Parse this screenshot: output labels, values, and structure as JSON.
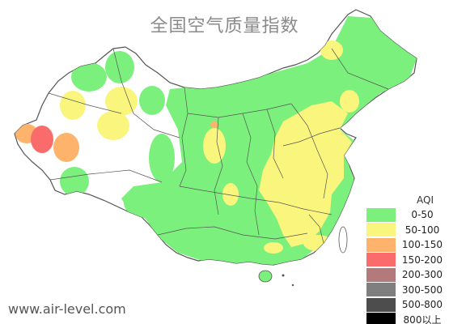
{
  "title": "全国空气质量指数",
  "website": "www.air-level.com",
  "legend": {
    "title": "AQI",
    "items": [
      {
        "label": "0-50",
        "color": "#7CF07C"
      },
      {
        "label": "50-100",
        "color": "#FAF57C"
      },
      {
        "label": "100-150",
        "color": "#FDB36B"
      },
      {
        "label": "150-200",
        "color": "#FA6B6B"
      },
      {
        "label": "200-300",
        "color": "#B27A7A"
      },
      {
        "label": "300-500",
        "color": "#7F7F7F"
      },
      {
        "label": "500-800",
        "color": "#4D4D4D"
      },
      {
        "label": "800以上",
        "color": "#000000"
      }
    ]
  },
  "map": {
    "region": "China",
    "coloring": "AQI by monitoring station",
    "dominant_levels": [
      "0-50",
      "50-100"
    ],
    "hotspot_levels": [
      "100-150",
      "150-200"
    ]
  }
}
